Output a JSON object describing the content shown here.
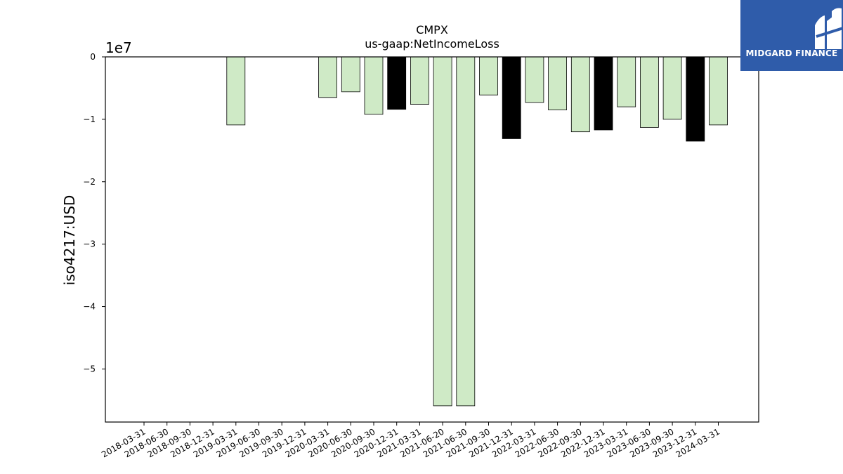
{
  "chart_data": {
    "type": "bar",
    "title": "CMPX",
    "subtitle": "us-gaap:NetIncomeLoss",
    "ylabel": "iso4217:USD",
    "y_multiplier_label": "1e7",
    "ylim": [
      -58500000,
      0
    ],
    "y_ticks": [
      0,
      -10000000,
      -20000000,
      -30000000,
      -40000000,
      -50000000
    ],
    "y_tick_labels": [
      "0",
      "−1",
      "−2",
      "−3",
      "−4",
      "−5"
    ],
    "grid": false,
    "categories": [
      "2018-03-31",
      "2018-06-30",
      "2018-09-30",
      "2018-12-31",
      "2019-03-31",
      "2019-06-30",
      "2019-09-30",
      "2019-12-31",
      "2020-03-31",
      "2020-06-30",
      "2020-09-30",
      "2020-12-31",
      "2021-03-31",
      "2021-06-20",
      "2021-06-30",
      "2021-09-30",
      "2021-12-31",
      "2022-03-31",
      "2022-06-30",
      "2022-09-30",
      "2022-12-31",
      "2023-03-31",
      "2023-06-30",
      "2023-09-30",
      "2023-12-31",
      "2024-03-31"
    ],
    "values": [
      0,
      0,
      0,
      0,
      -10900000,
      0,
      0,
      0,
      -6500000,
      -5600000,
      -9200000,
      -8400000,
      -7600000,
      -55900000,
      -55900000,
      -6100000,
      -13100000,
      -7300000,
      -8500000,
      -12000000,
      -11700000,
      -8000000,
      -11300000,
      -10000000,
      -13500000,
      -10900000
    ],
    "bar_colors": [
      "#cfeac6",
      "#cfeac6",
      "#cfeac6",
      "#cfeac6",
      "#cfeac6",
      "#cfeac6",
      "#cfeac6",
      "#cfeac6",
      "#cfeac6",
      "#cfeac6",
      "#cfeac6",
      "#000000",
      "#cfeac6",
      "#cfeac6",
      "#cfeac6",
      "#cfeac6",
      "#000000",
      "#cfeac6",
      "#cfeac6",
      "#cfeac6",
      "#000000",
      "#cfeac6",
      "#cfeac6",
      "#cfeac6",
      "#000000",
      "#cfeac6"
    ]
  },
  "logo": {
    "text": "MIDGARD FINANCE",
    "background": "#2f5caa"
  }
}
